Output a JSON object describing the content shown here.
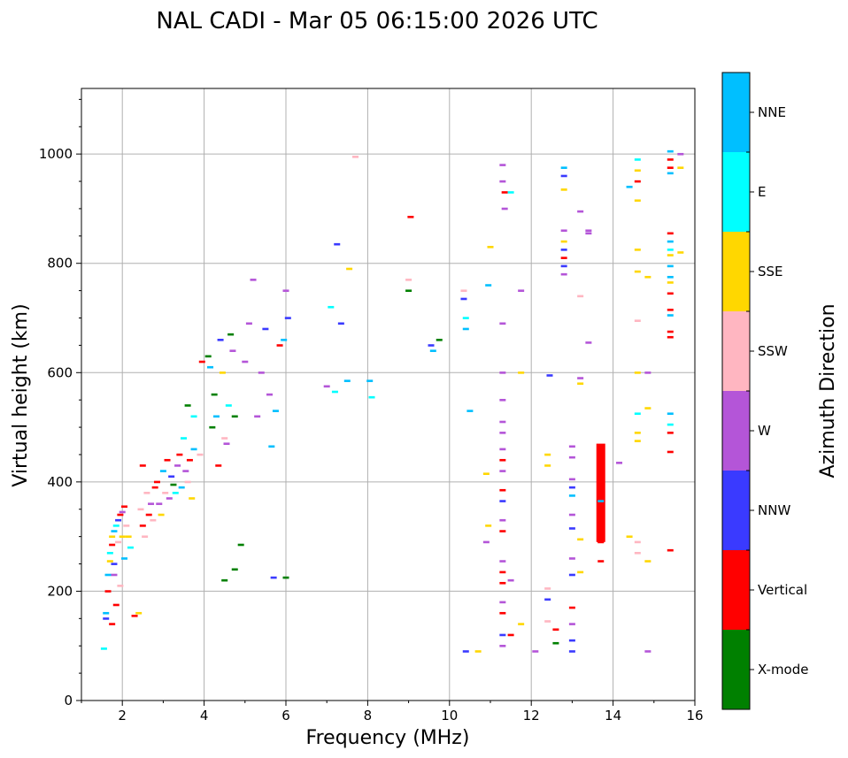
{
  "chart_data": {
    "type": "scatter",
    "title": "NAL CADI - Mar 05 06:15:00 2026 UTC",
    "xlabel": "Frequency (MHz)",
    "ylabel": "Virtual height (km)",
    "colorbar_label": "Azimuth Direction",
    "xlim": [
      1,
      16
    ],
    "ylim": [
      0,
      1120
    ],
    "xticks": [
      2,
      4,
      6,
      8,
      10,
      12,
      14,
      16
    ],
    "yticks": [
      0,
      200,
      400,
      600,
      800,
      1000
    ],
    "grid": true,
    "legend_position": "right colorbar",
    "categories": [
      {
        "name": "X-mode",
        "color": "#008000"
      },
      {
        "name": "Vertical",
        "color": "#ff0000"
      },
      {
        "name": "NNW",
        "color": "#3a3aff"
      },
      {
        "name": "W",
        "color": "#b455d8"
      },
      {
        "name": "SSW",
        "color": "#ffb6c1"
      },
      {
        "name": "SSE",
        "color": "#ffd700"
      },
      {
        "name": "E",
        "color": "#00ffff"
      },
      {
        "name": "NNE",
        "color": "#00bfff"
      }
    ],
    "points": [
      [
        1.55,
        95,
        "E"
      ],
      [
        1.6,
        150,
        "NNW"
      ],
      [
        1.6,
        160,
        "NNE"
      ],
      [
        1.65,
        200,
        "Vertical"
      ],
      [
        1.65,
        230,
        "NNE"
      ],
      [
        1.7,
        255,
        "SSE"
      ],
      [
        1.7,
        270,
        "E"
      ],
      [
        1.75,
        285,
        "Vertical"
      ],
      [
        1.75,
        300,
        "SSE"
      ],
      [
        1.8,
        310,
        "NNE"
      ],
      [
        1.8,
        250,
        "NNW"
      ],
      [
        1.85,
        320,
        "E"
      ],
      [
        1.85,
        175,
        "Vertical"
      ],
      [
        1.9,
        330,
        "NNW"
      ],
      [
        1.9,
        290,
        "SSW"
      ],
      [
        1.95,
        340,
        "Vertical"
      ],
      [
        1.95,
        210,
        "SSW"
      ],
      [
        2.0,
        345,
        "W"
      ],
      [
        2.0,
        300,
        "SSE"
      ],
      [
        2.05,
        355,
        "Vertical"
      ],
      [
        2.05,
        260,
        "NNE"
      ],
      [
        2.1,
        320,
        "SSW"
      ],
      [
        2.15,
        300,
        "SSE"
      ],
      [
        2.2,
        280,
        "E"
      ],
      [
        1.75,
        140,
        "Vertical"
      ],
      [
        1.8,
        230,
        "W"
      ],
      [
        2.3,
        155,
        "Vertical"
      ],
      [
        2.4,
        160,
        "SSE"
      ],
      [
        2.45,
        350,
        "SSW"
      ],
      [
        2.5,
        320,
        "Vertical"
      ],
      [
        2.5,
        430,
        "Vertical"
      ],
      [
        2.55,
        300,
        "SSW"
      ],
      [
        2.6,
        380,
        "SSW"
      ],
      [
        2.65,
        340,
        "Vertical"
      ],
      [
        2.7,
        360,
        "W"
      ],
      [
        2.75,
        330,
        "SSW"
      ],
      [
        2.8,
        390,
        "Vertical"
      ],
      [
        2.85,
        400,
        "Vertical"
      ],
      [
        2.9,
        360,
        "W"
      ],
      [
        2.95,
        340,
        "SSE"
      ],
      [
        3.0,
        420,
        "NNE"
      ],
      [
        3.05,
        380,
        "SSW"
      ],
      [
        3.1,
        440,
        "Vertical"
      ],
      [
        3.15,
        370,
        "W"
      ],
      [
        3.2,
        410,
        "NNW"
      ],
      [
        3.25,
        395,
        "X-mode"
      ],
      [
        3.3,
        380,
        "E"
      ],
      [
        3.35,
        430,
        "W"
      ],
      [
        3.4,
        450,
        "Vertical"
      ],
      [
        3.45,
        390,
        "NNE"
      ],
      [
        3.5,
        480,
        "E"
      ],
      [
        3.55,
        420,
        "W"
      ],
      [
        3.6,
        400,
        "SSW"
      ],
      [
        3.65,
        440,
        "Vertical"
      ],
      [
        3.7,
        370,
        "SSE"
      ],
      [
        3.75,
        460,
        "NNE"
      ],
      [
        3.6,
        540,
        "X-mode"
      ],
      [
        3.75,
        520,
        "E"
      ],
      [
        3.9,
        450,
        "SSW"
      ],
      [
        3.95,
        620,
        "Vertical"
      ],
      [
        4.1,
        630,
        "X-mode"
      ],
      [
        4.15,
        610,
        "NNE"
      ],
      [
        4.2,
        500,
        "X-mode"
      ],
      [
        4.25,
        560,
        "X-mode"
      ],
      [
        4.3,
        520,
        "NNE"
      ],
      [
        4.35,
        430,
        "Vertical"
      ],
      [
        4.4,
        660,
        "NNW"
      ],
      [
        4.45,
        600,
        "SSE"
      ],
      [
        4.5,
        480,
        "SSW"
      ],
      [
        4.55,
        470,
        "W"
      ],
      [
        4.6,
        540,
        "E"
      ],
      [
        4.65,
        670,
        "X-mode"
      ],
      [
        4.7,
        640,
        "W"
      ],
      [
        4.75,
        520,
        "X-mode"
      ],
      [
        4.5,
        220,
        "X-mode"
      ],
      [
        4.75,
        240,
        "X-mode"
      ],
      [
        4.9,
        285,
        "X-mode"
      ],
      [
        5.0,
        620,
        "W"
      ],
      [
        5.1,
        690,
        "W"
      ],
      [
        5.2,
        770,
        "W"
      ],
      [
        5.3,
        520,
        "W"
      ],
      [
        5.4,
        600,
        "W"
      ],
      [
        5.5,
        680,
        "NNW"
      ],
      [
        5.6,
        560,
        "W"
      ],
      [
        5.65,
        465,
        "NNE"
      ],
      [
        5.75,
        530,
        "NNE"
      ],
      [
        5.7,
        225,
        "NNW"
      ],
      [
        5.85,
        650,
        "Vertical"
      ],
      [
        5.95,
        660,
        "NNE"
      ],
      [
        6.0,
        750,
        "W"
      ],
      [
        6.05,
        700,
        "NNW"
      ],
      [
        6.0,
        225,
        "X-mode"
      ],
      [
        7.0,
        575,
        "W"
      ],
      [
        7.1,
        720,
        "E"
      ],
      [
        7.2,
        565,
        "E"
      ],
      [
        7.25,
        835,
        "NNW"
      ],
      [
        7.35,
        690,
        "NNW"
      ],
      [
        7.5,
        585,
        "NNE"
      ],
      [
        7.55,
        790,
        "SSE"
      ],
      [
        7.7,
        995,
        "SSW"
      ],
      [
        8.05,
        585,
        "NNE"
      ],
      [
        8.1,
        555,
        "E"
      ],
      [
        9.0,
        770,
        "SSW"
      ],
      [
        9.0,
        750,
        "X-mode"
      ],
      [
        9.05,
        885,
        "Vertical"
      ],
      [
        9.55,
        650,
        "NNW"
      ],
      [
        9.6,
        640,
        "NNE"
      ],
      [
        9.75,
        660,
        "X-mode"
      ],
      [
        10.35,
        750,
        "SSW"
      ],
      [
        10.35,
        735,
        "NNW"
      ],
      [
        10.4,
        700,
        "E"
      ],
      [
        10.4,
        680,
        "NNE"
      ],
      [
        10.5,
        530,
        "NNE"
      ],
      [
        10.4,
        90,
        "NNW"
      ],
      [
        10.7,
        90,
        "SSE"
      ],
      [
        10.9,
        415,
        "SSE"
      ],
      [
        10.95,
        320,
        "SSE"
      ],
      [
        10.9,
        290,
        "W"
      ],
      [
        11.0,
        830,
        "SSE"
      ],
      [
        10.95,
        760,
        "NNE"
      ],
      [
        11.3,
        980,
        "W"
      ],
      [
        11.3,
        950,
        "W"
      ],
      [
        11.35,
        930,
        "Vertical"
      ],
      [
        11.35,
        900,
        "W"
      ],
      [
        11.3,
        690,
        "W"
      ],
      [
        11.3,
        600,
        "W"
      ],
      [
        11.3,
        550,
        "W"
      ],
      [
        11.3,
        510,
        "W"
      ],
      [
        11.3,
        490,
        "W"
      ],
      [
        11.3,
        460,
        "W"
      ],
      [
        11.3,
        440,
        "Vertical"
      ],
      [
        11.3,
        420,
        "W"
      ],
      [
        11.3,
        385,
        "Vertical"
      ],
      [
        11.3,
        365,
        "NNW"
      ],
      [
        11.3,
        330,
        "W"
      ],
      [
        11.3,
        310,
        "Vertical"
      ],
      [
        11.3,
        255,
        "W"
      ],
      [
        11.3,
        235,
        "Vertical"
      ],
      [
        11.3,
        215,
        "Vertical"
      ],
      [
        11.3,
        180,
        "W"
      ],
      [
        11.3,
        160,
        "Vertical"
      ],
      [
        11.3,
        120,
        "NNW"
      ],
      [
        11.3,
        100,
        "W"
      ],
      [
        11.5,
        120,
        "Vertical"
      ],
      [
        11.5,
        930,
        "E"
      ],
      [
        11.5,
        220,
        "W"
      ],
      [
        11.75,
        750,
        "W"
      ],
      [
        11.75,
        600,
        "SSE"
      ],
      [
        11.75,
        140,
        "SSE"
      ],
      [
        12.1,
        90,
        "W"
      ],
      [
        12.45,
        595,
        "NNW"
      ],
      [
        12.4,
        450,
        "SSE"
      ],
      [
        12.4,
        430,
        "SSE"
      ],
      [
        12.4,
        205,
        "SSW"
      ],
      [
        12.4,
        185,
        "NNW"
      ],
      [
        12.4,
        145,
        "SSW"
      ],
      [
        12.6,
        130,
        "Vertical"
      ],
      [
        12.6,
        105,
        "X-mode"
      ],
      [
        12.8,
        975,
        "NNE"
      ],
      [
        12.8,
        960,
        "NNW"
      ],
      [
        12.8,
        935,
        "SSE"
      ],
      [
        12.8,
        860,
        "W"
      ],
      [
        12.8,
        840,
        "SSE"
      ],
      [
        12.8,
        825,
        "NNW"
      ],
      [
        12.8,
        810,
        "Vertical"
      ],
      [
        12.8,
        795,
        "NNW"
      ],
      [
        12.8,
        780,
        "W"
      ],
      [
        13.0,
        465,
        "W"
      ],
      [
        13.0,
        445,
        "W"
      ],
      [
        13.0,
        405,
        "W"
      ],
      [
        13.0,
        390,
        "NNW"
      ],
      [
        13.0,
        375,
        "NNE"
      ],
      [
        13.0,
        340,
        "W"
      ],
      [
        13.0,
        315,
        "NNW"
      ],
      [
        13.0,
        260,
        "W"
      ],
      [
        13.0,
        230,
        "NNW"
      ],
      [
        13.0,
        170,
        "Vertical"
      ],
      [
        13.0,
        140,
        "W"
      ],
      [
        13.0,
        110,
        "NNW"
      ],
      [
        13.0,
        90,
        "NNW"
      ],
      [
        13.2,
        895,
        "W"
      ],
      [
        13.2,
        740,
        "SSW"
      ],
      [
        13.2,
        590,
        "W"
      ],
      [
        13.2,
        580,
        "SSE"
      ],
      [
        13.2,
        295,
        "SSE"
      ],
      [
        13.2,
        235,
        "SSE"
      ],
      [
        13.4,
        860,
        "W"
      ],
      [
        13.4,
        855,
        "W"
      ],
      [
        13.4,
        655,
        "W"
      ],
      [
        13.7,
        450,
        "Vertical"
      ],
      [
        13.7,
        400,
        "Vertical"
      ],
      [
        13.7,
        365,
        "NNE"
      ],
      [
        13.7,
        325,
        "Vertical"
      ],
      [
        13.7,
        290,
        "Vertical"
      ],
      [
        13.7,
        255,
        "Vertical"
      ],
      [
        14.15,
        435,
        "W"
      ],
      [
        14.4,
        940,
        "NNE"
      ],
      [
        14.4,
        300,
        "SSE"
      ],
      [
        14.6,
        990,
        "E"
      ],
      [
        14.6,
        970,
        "SSE"
      ],
      [
        14.6,
        950,
        "Vertical"
      ],
      [
        14.6,
        915,
        "SSE"
      ],
      [
        14.6,
        825,
        "SSE"
      ],
      [
        14.6,
        785,
        "SSE"
      ],
      [
        14.6,
        695,
        "SSW"
      ],
      [
        14.6,
        600,
        "SSE"
      ],
      [
        14.6,
        525,
        "E"
      ],
      [
        14.6,
        490,
        "SSE"
      ],
      [
        14.6,
        475,
        "SSE"
      ],
      [
        14.6,
        290,
        "SSW"
      ],
      [
        14.6,
        270,
        "SSW"
      ],
      [
        14.85,
        775,
        "SSE"
      ],
      [
        14.85,
        600,
        "W"
      ],
      [
        14.85,
        535,
        "SSE"
      ],
      [
        14.85,
        255,
        "SSE"
      ],
      [
        14.85,
        90,
        "W"
      ],
      [
        15.4,
        1005,
        "NNE"
      ],
      [
        15.4,
        990,
        "Vertical"
      ],
      [
        15.4,
        975,
        "Vertical"
      ],
      [
        15.4,
        965,
        "NNE"
      ],
      [
        15.4,
        855,
        "Vertical"
      ],
      [
        15.4,
        840,
        "NNE"
      ],
      [
        15.4,
        825,
        "E"
      ],
      [
        15.4,
        815,
        "SSE"
      ],
      [
        15.4,
        795,
        "NNE"
      ],
      [
        15.4,
        775,
        "NNE"
      ],
      [
        15.4,
        765,
        "SSE"
      ],
      [
        15.4,
        745,
        "Vertical"
      ],
      [
        15.4,
        715,
        "Vertical"
      ],
      [
        15.4,
        705,
        "NNE"
      ],
      [
        15.4,
        675,
        "Vertical"
      ],
      [
        15.4,
        665,
        "Vertical"
      ],
      [
        15.4,
        525,
        "NNE"
      ],
      [
        15.4,
        505,
        "E"
      ],
      [
        15.4,
        490,
        "Vertical"
      ],
      [
        15.4,
        455,
        "Vertical"
      ],
      [
        15.4,
        275,
        "Vertical"
      ],
      [
        15.65,
        1000,
        "W"
      ],
      [
        15.65,
        975,
        "SSE"
      ],
      [
        15.65,
        820,
        "SSE"
      ]
    ],
    "segments": [
      {
        "x": 13.7,
        "y0": 290,
        "y1": 470,
        "label": "Vertical"
      }
    ]
  }
}
